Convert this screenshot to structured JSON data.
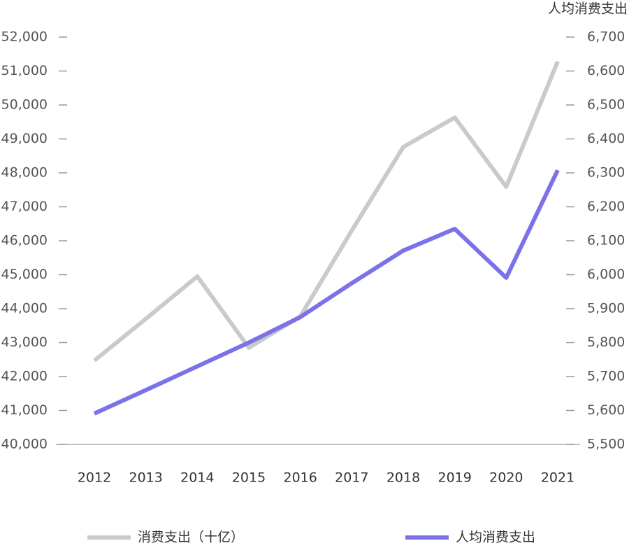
{
  "chart_data": {
    "type": "line",
    "y2label": "人均消费支出",
    "categories": [
      "2012",
      "2013",
      "2014",
      "2015",
      "2016",
      "2017",
      "2018",
      "2019",
      "2020",
      "2021"
    ],
    "series": [
      {
        "name": "消费支出（十亿）",
        "color": "#c8cbcc",
        "values": [
          42470,
          43700,
          44950,
          42850,
          43770,
          46300,
          48760,
          49630,
          47590,
          51280
        ]
      },
      {
        "name": "人均消费支出",
        "color": "#7b72ea",
        "axis": "y2",
        "values": [
          5591,
          5660,
          5730,
          5800,
          5875,
          5975,
          6071,
          6135,
          5991,
          6308
        ]
      }
    ],
    "ylim": [
      40000,
      52000
    ],
    "yticks": [
      {
        "value": 40000,
        "label": "40,000"
      },
      {
        "value": 41000,
        "label": "41,000"
      },
      {
        "value": 42000,
        "label": "42,000"
      },
      {
        "value": 43000,
        "label": "43,000"
      },
      {
        "value": 44000,
        "label": "44,000"
      },
      {
        "value": 45000,
        "label": "45,000"
      },
      {
        "value": 46000,
        "label": "46,000"
      },
      {
        "value": 47000,
        "label": "47,000"
      },
      {
        "value": 48000,
        "label": "48,000"
      },
      {
        "value": 49000,
        "label": "49,000"
      },
      {
        "value": 50000,
        "label": "50,000"
      },
      {
        "value": 51000,
        "label": "51,000"
      },
      {
        "value": 52000,
        "label": "52,000"
      }
    ],
    "y2lim": [
      5500,
      6700
    ],
    "y2ticks": [
      {
        "value": 5500,
        "label": "5,500"
      },
      {
        "value": 5600,
        "label": "5,600"
      },
      {
        "value": 5700,
        "label": "5,700"
      },
      {
        "value": 5800,
        "label": "5,800"
      },
      {
        "value": 5900,
        "label": "5,900"
      },
      {
        "value": 6000,
        "label": "6,000"
      },
      {
        "value": 6100,
        "label": "6,100"
      },
      {
        "value": 6200,
        "label": "6,200"
      },
      {
        "value": 6300,
        "label": "6,300"
      },
      {
        "value": 6400,
        "label": "6,400"
      },
      {
        "value": 6500,
        "label": "6,500"
      },
      {
        "value": 6600,
        "label": "6,600"
      },
      {
        "value": 6700,
        "label": "6,700"
      }
    ],
    "legend": "bottom"
  }
}
